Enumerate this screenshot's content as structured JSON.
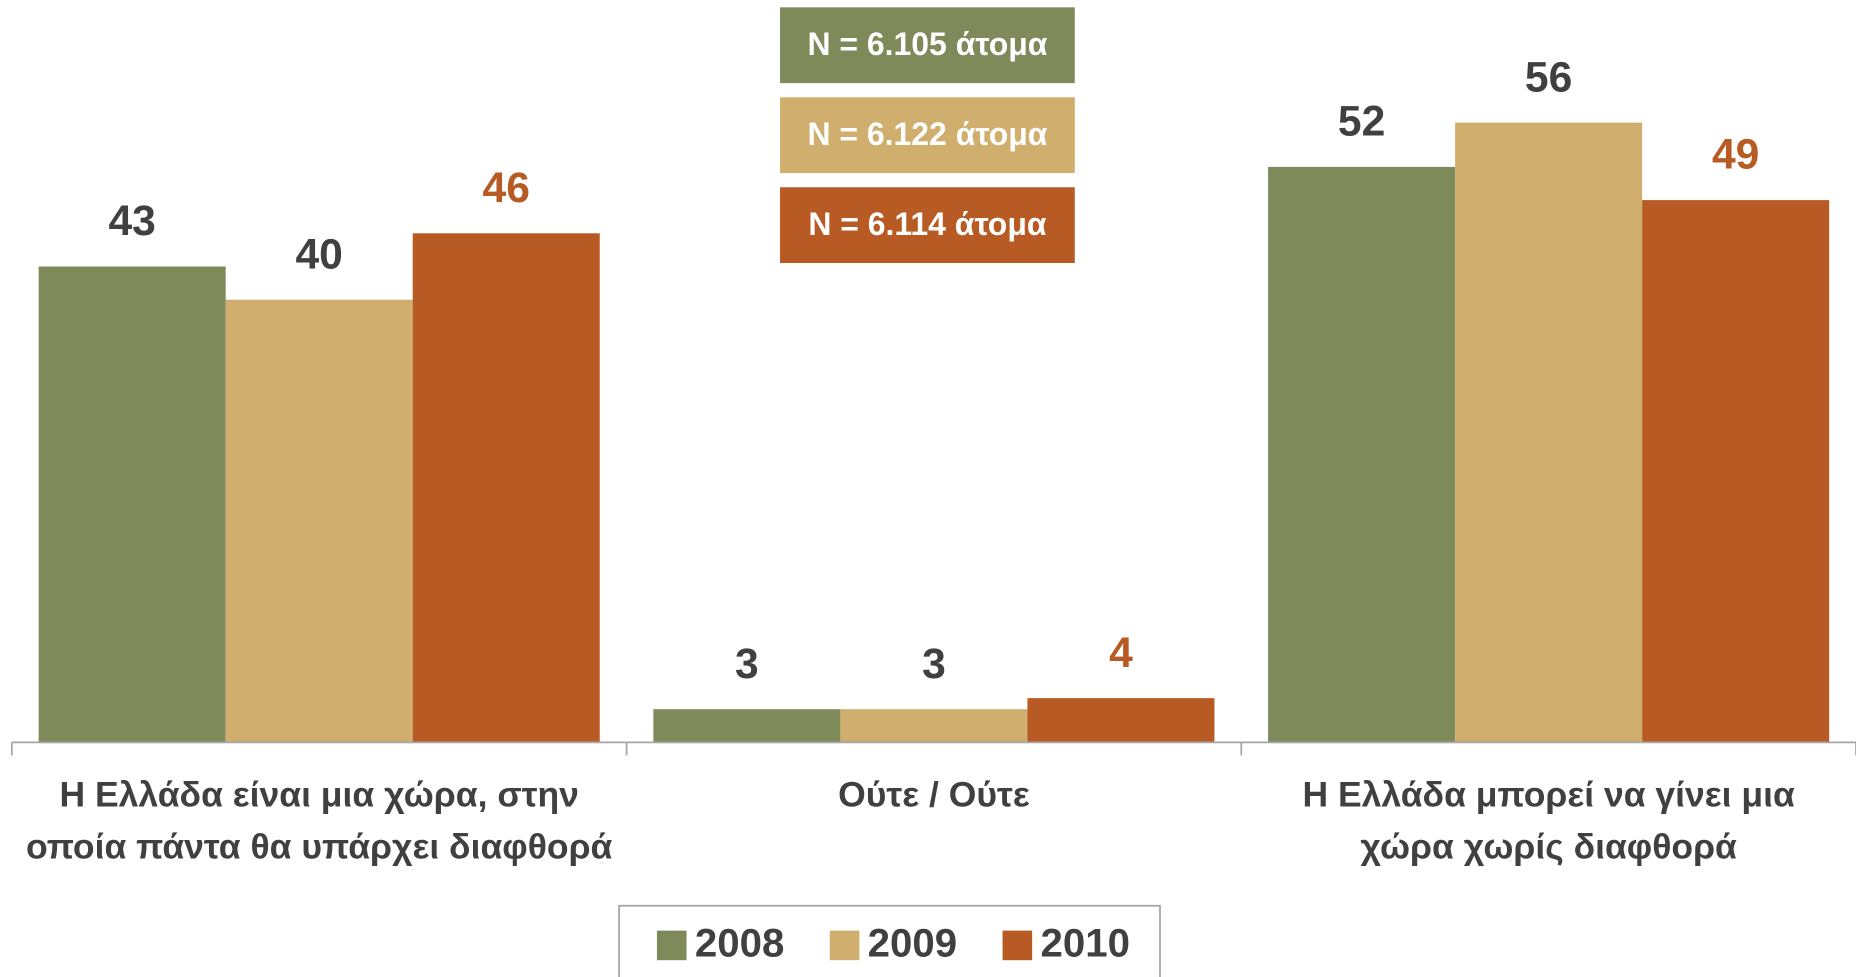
{
  "chart_data": {
    "type": "bar",
    "categories": [
      "Η Ελλάδα είναι μια χώρα, στην οποία πάντα θα υπάρχει διαφθορά",
      "Ούτε / Ούτε",
      "Η Ελλάδα μπορεί να γίνει μια χώρα χωρίς διαφθορά"
    ],
    "series": [
      {
        "name": "2008",
        "color": "#7f8a5a",
        "label_color": "#404040",
        "values": [
          43,
          3,
          52
        ]
      },
      {
        "name": "2009",
        "color": "#cfae6e",
        "label_color": "#404040",
        "values": [
          40,
          3,
          56
        ]
      },
      {
        "name": "2010",
        "color": "#b85a24",
        "label_color": "#b85a24",
        "values": [
          46,
          4,
          49
        ]
      }
    ],
    "annotations": [
      {
        "text": "N = 6.105 άτομα",
        "color": "#7f8a5a"
      },
      {
        "text": "N = 6.122 άτομα",
        "color": "#cfae6e"
      },
      {
        "text": "N = 6.114 άτομα",
        "color": "#b85a24"
      }
    ],
    "ylim": [
      0,
      60
    ],
    "legend": "bottom"
  }
}
